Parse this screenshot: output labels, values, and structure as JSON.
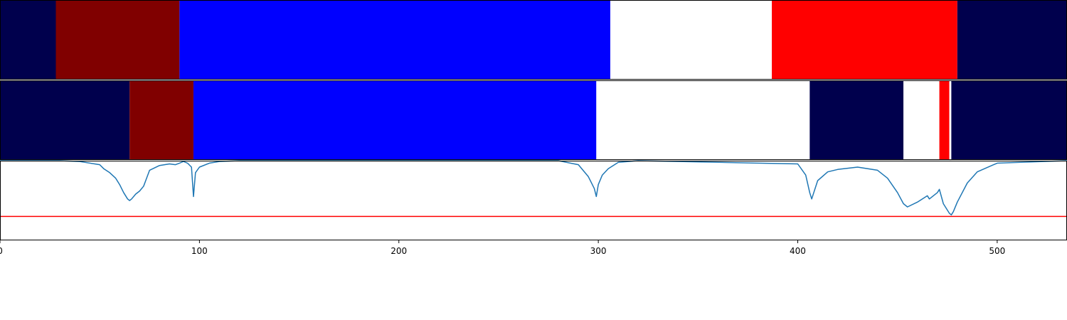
{
  "chart_data": [
    {
      "type": "segmentation",
      "xlim": [
        0,
        535
      ],
      "segments": [
        {
          "start": 0,
          "end": 28,
          "color": "#00004d"
        },
        {
          "start": 28,
          "end": 90,
          "color": "#800000"
        },
        {
          "start": 90,
          "end": 306,
          "color": "#0000ff"
        },
        {
          "start": 306,
          "end": 387,
          "color": "#ffffff"
        },
        {
          "start": 387,
          "end": 480,
          "color": "#ff0000"
        },
        {
          "start": 480,
          "end": 535,
          "color": "#00004d"
        }
      ]
    },
    {
      "type": "segmentation",
      "xlim": [
        0,
        535
      ],
      "segments": [
        {
          "start": 0,
          "end": 65,
          "color": "#00004d"
        },
        {
          "start": 65,
          "end": 97,
          "color": "#800000"
        },
        {
          "start": 97,
          "end": 299,
          "color": "#0000ff"
        },
        {
          "start": 299,
          "end": 406,
          "color": "#ffffff"
        },
        {
          "start": 406,
          "end": 453,
          "color": "#00004d"
        },
        {
          "start": 453,
          "end": 471,
          "color": "#ffffff"
        },
        {
          "start": 471,
          "end": 476,
          "color": "#ff0000"
        },
        {
          "start": 476,
          "end": 477,
          "color": "#ffffff"
        },
        {
          "start": 477,
          "end": 535,
          "color": "#00004d"
        }
      ]
    },
    {
      "type": "line",
      "xlim": [
        0,
        535
      ],
      "ylim": [
        0,
        1
      ],
      "line_color": "#1f77b4",
      "threshold": {
        "value": 0.3,
        "color": "#ff0000"
      },
      "x": [
        0,
        30,
        40,
        50,
        52,
        55,
        58,
        60,
        62,
        64,
        65,
        66,
        68,
        70,
        72,
        75,
        80,
        85,
        88,
        90,
        92,
        94,
        96,
        97,
        98,
        100,
        105,
        110,
        120,
        200,
        280,
        290,
        295,
        298,
        299,
        300,
        302,
        305,
        310,
        320,
        400,
        404,
        406,
        407,
        410,
        415,
        420,
        430,
        440,
        445,
        450,
        453,
        455,
        460,
        465,
        466,
        470,
        471,
        473,
        476,
        477,
        478,
        480,
        485,
        490,
        500,
        535
      ],
      "y": [
        1,
        1,
        0.99,
        0.95,
        0.9,
        0.85,
        0.78,
        0.7,
        0.6,
        0.52,
        0.5,
        0.52,
        0.58,
        0.62,
        0.68,
        0.88,
        0.94,
        0.96,
        0.95,
        0.97,
        0.99,
        0.97,
        0.92,
        0.55,
        0.85,
        0.92,
        0.97,
        0.99,
        1,
        1,
        1,
        0.95,
        0.8,
        0.65,
        0.55,
        0.7,
        0.82,
        0.9,
        0.98,
        1,
        0.96,
        0.82,
        0.6,
        0.52,
        0.75,
        0.86,
        0.89,
        0.92,
        0.88,
        0.78,
        0.6,
        0.46,
        0.42,
        0.48,
        0.56,
        0.52,
        0.6,
        0.64,
        0.46,
        0.34,
        0.32,
        0.36,
        0.48,
        0.72,
        0.86,
        0.97,
        1
      ]
    }
  ],
  "x_ticks": [
    "0",
    "100",
    "200",
    "300",
    "400",
    "500"
  ]
}
